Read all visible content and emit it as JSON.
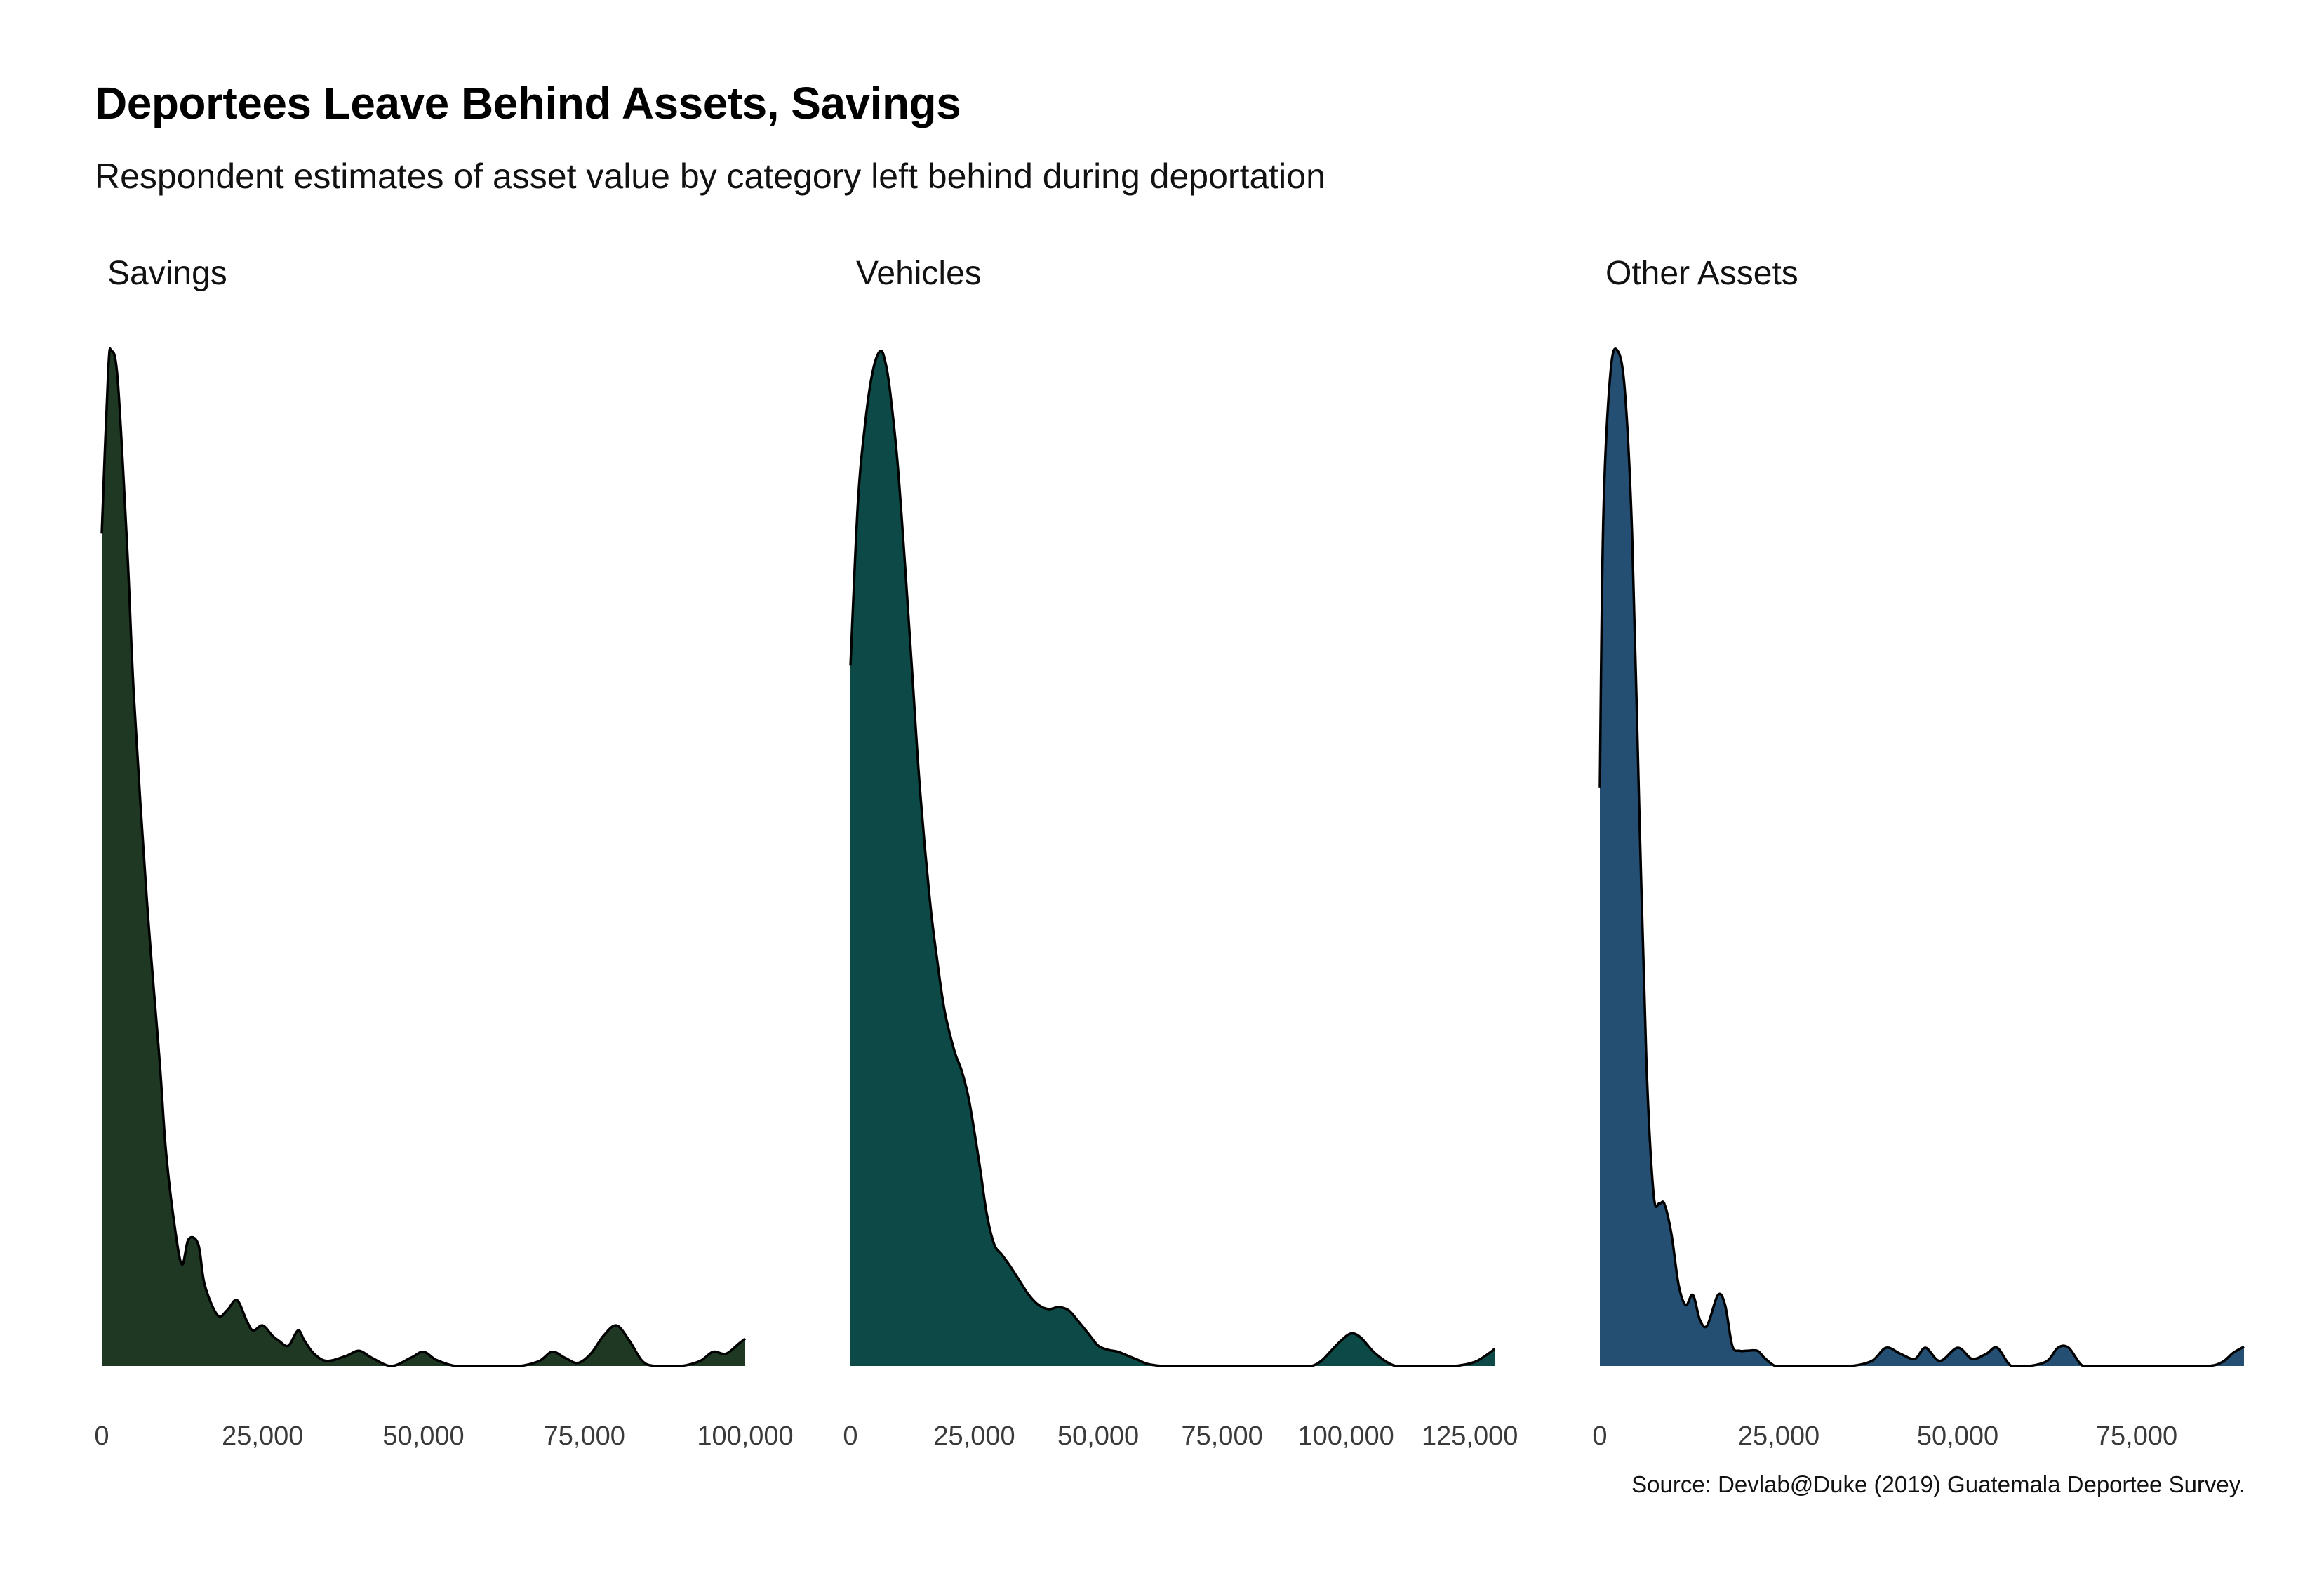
{
  "title": "Deportees Leave Behind Assets, Savings",
  "subtitle": "Respondent estimates of asset value by category left behind during deportation",
  "caption": "Source: Devlab@Duke (2019) Guatemala Deportee Survey.",
  "chart_data": [
    {
      "type": "area",
      "title": "Savings",
      "color": "#1e3823",
      "xlim": [
        0,
        100000
      ],
      "xticks": [
        0,
        25000,
        50000,
        75000,
        100000
      ],
      "xtick_labels": [
        "0",
        "25,000",
        "50,000",
        "75,000",
        "100,000"
      ],
      "ylim": [
        0,
        1
      ],
      "x": [
        0,
        1000,
        1500,
        2500,
        4000,
        5000,
        7000,
        9000,
        10000,
        11500,
        12500,
        13500,
        15000,
        16000,
        18000,
        19500,
        21000,
        22500,
        23500,
        25000,
        26500,
        27500,
        29000,
        30500,
        31500,
        33000,
        35000,
        38000,
        40000,
        42000,
        45000,
        48000,
        50000,
        52000,
        55000,
        58000,
        62000,
        65000,
        68000,
        70000,
        72000,
        74000,
        76000,
        78000,
        80000,
        82000,
        84000,
        86000,
        90000,
        93000,
        95000,
        97000,
        99000,
        100000
      ],
      "y": [
        0.82,
        0.98,
        1.0,
        0.97,
        0.8,
        0.66,
        0.46,
        0.3,
        0.21,
        0.13,
        0.1,
        0.125,
        0.12,
        0.08,
        0.05,
        0.055,
        0.065,
        0.045,
        0.035,
        0.04,
        0.03,
        0.025,
        0.02,
        0.035,
        0.025,
        0.012,
        0.005,
        0.01,
        0.015,
        0.008,
        0.0,
        0.008,
        0.014,
        0.006,
        0.0,
        0.0,
        0.0,
        0.0,
        0.005,
        0.014,
        0.008,
        0.003,
        0.012,
        0.03,
        0.04,
        0.025,
        0.005,
        0.0,
        0.0,
        0.005,
        0.014,
        0.012,
        0.022,
        0.027
      ]
    },
    {
      "type": "area",
      "title": "Vehicles",
      "color": "#0d4a47",
      "xlim": [
        0,
        130000
      ],
      "xticks": [
        0,
        25000,
        50000,
        75000,
        100000,
        125000
      ],
      "xtick_labels": [
        "0",
        "25,000",
        "50,000",
        "75,000",
        "100,000",
        "125,000"
      ],
      "ylim": [
        0,
        1
      ],
      "x": [
        0,
        1500,
        3000,
        4500,
        6000,
        7000,
        8000,
        9500,
        11000,
        12500,
        14000,
        16000,
        17500,
        19000,
        21000,
        22500,
        24000,
        26000,
        27500,
        29000,
        30500,
        32000,
        34000,
        36000,
        38000,
        40000,
        42000,
        44000,
        46000,
        48000,
        50000,
        52000,
        54000,
        56000,
        58000,
        60000,
        63000,
        66000,
        70000,
        75000,
        80000,
        85000,
        90000,
        93000,
        95000,
        97000,
        99000,
        101000,
        103000,
        106000,
        110000,
        115000,
        118000,
        122000,
        126000,
        129000,
        130000
      ],
      "y": [
        0.69,
        0.85,
        0.93,
        0.98,
        1.0,
        0.99,
        0.96,
        0.89,
        0.79,
        0.68,
        0.57,
        0.46,
        0.4,
        0.35,
        0.31,
        0.29,
        0.26,
        0.2,
        0.15,
        0.12,
        0.11,
        0.1,
        0.085,
        0.07,
        0.06,
        0.056,
        0.058,
        0.055,
        0.044,
        0.032,
        0.02,
        0.016,
        0.014,
        0.01,
        0.006,
        0.002,
        0.0,
        0.0,
        0.0,
        0.0,
        0.0,
        0.0,
        0.0,
        0.0,
        0.005,
        0.015,
        0.025,
        0.032,
        0.028,
        0.012,
        0.0,
        0.0,
        0.0,
        0.0,
        0.004,
        0.013,
        0.017
      ]
    },
    {
      "type": "area",
      "title": "Other Assets",
      "color": "#244f73",
      "xlim": [
        0,
        90000
      ],
      "xticks": [
        0,
        25000,
        50000,
        75000
      ],
      "xtick_labels": [
        "0",
        "25,000",
        "50,000",
        "75,000"
      ],
      "ylim": [
        0,
        1
      ],
      "x": [
        0,
        500,
        1500,
        2500,
        3500,
        4500,
        5500,
        6500,
        7500,
        8300,
        9000,
        10000,
        11000,
        12000,
        13000,
        14000,
        15000,
        16500,
        17500,
        18500,
        19500,
        20500,
        22000,
        23000,
        24500,
        26000,
        28000,
        31000,
        35000,
        38000,
        40000,
        42000,
        44000,
        45500,
        47500,
        50000,
        52000,
        54000,
        55500,
        57500,
        60000,
        62500,
        64000,
        65500,
        67500,
        70000,
        75000,
        80000,
        85000,
        87000,
        88500,
        90000
      ],
      "y": [
        0.57,
        0.84,
        0.98,
        1.0,
        0.96,
        0.82,
        0.55,
        0.3,
        0.17,
        0.16,
        0.16,
        0.13,
        0.08,
        0.06,
        0.07,
        0.045,
        0.04,
        0.07,
        0.06,
        0.02,
        0.015,
        0.015,
        0.015,
        0.008,
        0.0,
        0.0,
        0.0,
        0.0,
        0.0,
        0.005,
        0.018,
        0.012,
        0.007,
        0.018,
        0.005,
        0.018,
        0.007,
        0.012,
        0.018,
        0.0,
        0.0,
        0.005,
        0.018,
        0.018,
        0.0,
        0.0,
        0.0,
        0.0,
        0.0,
        0.004,
        0.013,
        0.019
      ]
    }
  ]
}
